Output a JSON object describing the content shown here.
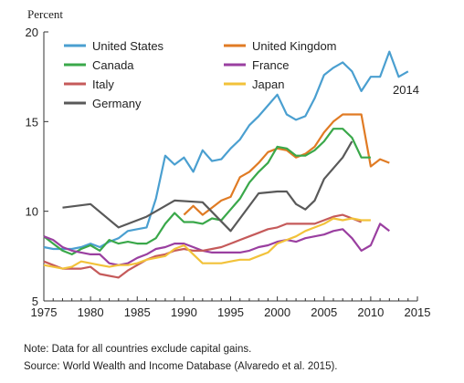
{
  "chart_data": {
    "type": "line",
    "ylabel": "Percent",
    "xlim": [
      1975,
      2015
    ],
    "ylim": [
      5,
      20
    ],
    "xticks": [
      1975,
      1980,
      1985,
      1990,
      1995,
      2000,
      2005,
      2010,
      2015
    ],
    "yticks": [
      5,
      10,
      15,
      20
    ],
    "annotation": "2014",
    "legend_position": "top",
    "series": [
      {
        "name": "United States",
        "color": "#4a9fd0",
        "x": [
          1975,
          1976,
          1977,
          1978,
          1979,
          1980,
          1981,
          1982,
          1983,
          1984,
          1985,
          1986,
          1987,
          1988,
          1989,
          1990,
          1991,
          1992,
          1993,
          1994,
          1995,
          1996,
          1997,
          1998,
          1999,
          2000,
          2001,
          2002,
          2003,
          2004,
          2005,
          2006,
          2007,
          2008,
          2009,
          2010,
          2011,
          2012,
          2013,
          2014
        ],
        "y": [
          8.0,
          7.9,
          7.9,
          7.9,
          8.0,
          8.2,
          8.0,
          8.3,
          8.5,
          8.9,
          9.0,
          9.1,
          10.7,
          13.1,
          12.6,
          13.0,
          12.2,
          13.4,
          12.8,
          12.9,
          13.5,
          14.0,
          14.8,
          15.3,
          15.9,
          16.5,
          15.4,
          15.1,
          15.3,
          16.3,
          17.6,
          18.0,
          18.3,
          17.8,
          16.7,
          17.5,
          17.5,
          18.9,
          17.5,
          17.8
        ]
      },
      {
        "name": "United Kingdom",
        "color": "#e07b24",
        "x": [
          1990,
          1991,
          1992,
          1993,
          1994,
          1995,
          1996,
          1997,
          1998,
          1999,
          2000,
          2001,
          2002,
          2003,
          2004,
          2005,
          2006,
          2007,
          2008,
          2009,
          2010,
          2011,
          2012
        ],
        "y": [
          9.8,
          10.3,
          9.8,
          10.2,
          10.6,
          10.8,
          11.9,
          12.2,
          12.7,
          13.3,
          13.5,
          13.4,
          13.0,
          13.2,
          13.6,
          14.4,
          15.0,
          15.4,
          15.4,
          15.4,
          12.5,
          12.9,
          12.7
        ]
      },
      {
        "name": "Canada",
        "color": "#3aa84a",
        "x": [
          1975,
          1976,
          1977,
          1978,
          1979,
          1980,
          1981,
          1982,
          1983,
          1984,
          1985,
          1986,
          1987,
          1988,
          1989,
          1990,
          1991,
          1992,
          1993,
          1994,
          1995,
          1996,
          1997,
          1998,
          1999,
          2000,
          2001,
          2002,
          2003,
          2004,
          2005,
          2006,
          2007,
          2008,
          2009,
          2010
        ],
        "y": [
          8.6,
          8.2,
          7.8,
          7.6,
          7.9,
          8.1,
          7.8,
          8.4,
          8.2,
          8.3,
          8.2,
          8.2,
          8.5,
          9.3,
          9.9,
          9.4,
          9.4,
          9.3,
          9.6,
          9.5,
          10.1,
          10.7,
          11.6,
          12.2,
          12.7,
          13.6,
          13.5,
          13.1,
          13.1,
          13.4,
          13.9,
          14.6,
          14.6,
          14.1,
          13.0,
          13.0
        ]
      },
      {
        "name": "France",
        "color": "#9a3fa0",
        "x": [
          1975,
          1976,
          1977,
          1978,
          1979,
          1980,
          1981,
          1982,
          1983,
          1984,
          1985,
          1986,
          1987,
          1988,
          1989,
          1990,
          1991,
          1992,
          1993,
          1994,
          1995,
          1996,
          1997,
          1998,
          1999,
          2000,
          2001,
          2002,
          2003,
          2004,
          2005,
          2006,
          2007,
          2008,
          2009,
          2010,
          2011,
          2012
        ],
        "y": [
          8.6,
          8.4,
          8.0,
          7.8,
          7.7,
          7.6,
          7.6,
          7.1,
          7.0,
          7.1,
          7.4,
          7.6,
          7.9,
          8.0,
          8.2,
          8.2,
          8.0,
          7.8,
          7.7,
          7.7,
          7.7,
          7.7,
          7.8,
          8.0,
          8.1,
          8.3,
          8.4,
          8.3,
          8.5,
          8.6,
          8.7,
          8.9,
          9.0,
          8.5,
          7.8,
          8.1,
          9.3,
          8.9
        ]
      },
      {
        "name": "Italy",
        "color": "#c55a5a",
        "x": [
          1975,
          1976,
          1977,
          1978,
          1979,
          1980,
          1981,
          1982,
          1983,
          1984,
          1985,
          1986,
          1987,
          1988,
          1989,
          1990,
          1991,
          1992,
          1993,
          1994,
          1995,
          1996,
          1997,
          1998,
          1999,
          2000,
          2001,
          2002,
          2003,
          2004,
          2005,
          2006,
          2007,
          2008,
          2009
        ],
        "y": [
          7.2,
          7.0,
          6.8,
          6.8,
          6.8,
          6.9,
          6.5,
          6.4,
          6.3,
          6.7,
          7.0,
          7.3,
          7.5,
          7.6,
          7.8,
          7.9,
          7.8,
          7.8,
          7.9,
          8.0,
          8.2,
          8.4,
          8.6,
          8.8,
          9.0,
          9.1,
          9.3,
          9.3,
          9.3,
          9.3,
          9.5,
          9.7,
          9.8,
          9.6,
          9.4
        ]
      },
      {
        "name": "Japan",
        "color": "#f2c23a",
        "x": [
          1975,
          1976,
          1977,
          1978,
          1979,
          1980,
          1981,
          1982,
          1983,
          1984,
          1985,
          1986,
          1987,
          1988,
          1989,
          1990,
          1991,
          1992,
          1993,
          1994,
          1995,
          1996,
          1997,
          1998,
          1999,
          2000,
          2001,
          2002,
          2003,
          2004,
          2005,
          2006,
          2007,
          2008,
          2009,
          2010
        ],
        "y": [
          7.0,
          6.9,
          6.8,
          6.9,
          7.2,
          7.1,
          7.0,
          6.9,
          7.0,
          7.0,
          7.1,
          7.3,
          7.4,
          7.5,
          7.9,
          8.1,
          7.6,
          7.1,
          7.1,
          7.1,
          7.2,
          7.3,
          7.3,
          7.5,
          7.7,
          8.2,
          8.4,
          8.6,
          8.9,
          9.1,
          9.3,
          9.6,
          9.5,
          9.6,
          9.5,
          9.5
        ]
      },
      {
        "name": "Germany",
        "color": "#595959",
        "x": [
          1977,
          1980,
          1983,
          1986,
          1989,
          1992,
          1995,
          1998,
          2000,
          2001,
          2002,
          2003,
          2004,
          2005,
          2007,
          2008
        ],
        "y": [
          10.2,
          10.4,
          9.1,
          9.7,
          10.6,
          10.5,
          8.9,
          11.0,
          11.1,
          11.1,
          10.4,
          10.1,
          10.6,
          11.8,
          13.0,
          13.9
        ]
      }
    ]
  },
  "notes": {
    "line1": "Note: Data for all countries exclude capital gains.",
    "line2": "Source: World Wealth and Income Database (Alvaredo et al. 2015)."
  }
}
